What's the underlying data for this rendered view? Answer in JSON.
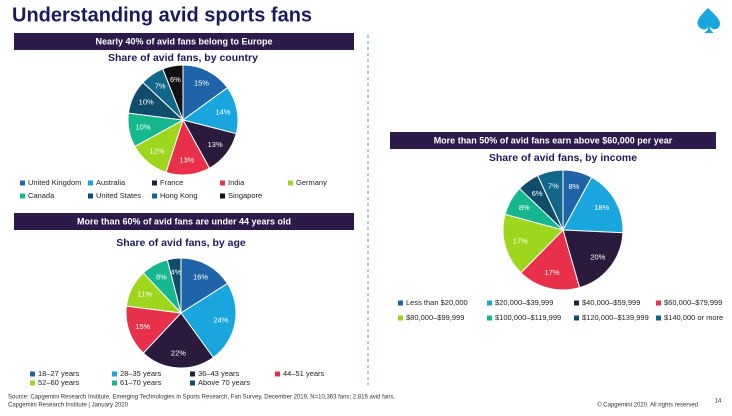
{
  "title": "Understanding avid sports fans",
  "chart_data": [
    {
      "type": "pie",
      "headline": "Nearly 40% of avid fans belong to Europe",
      "title": "Share of avid fans, by country",
      "categories": [
        "United Kingdom",
        "Australia",
        "France",
        "India",
        "Germany",
        "Canada",
        "United States",
        "Hong Kong",
        "Singapore"
      ],
      "values": [
        15,
        14,
        13,
        13,
        12,
        10,
        10,
        7,
        6
      ],
      "value_labels": [
        "15%",
        "14%",
        "13%",
        "13%",
        "12%",
        "10%",
        "10%",
        "7%",
        "6%"
      ],
      "colors": [
        "#1f64a8",
        "#19a6de",
        "#2a1b3d",
        "#e8304b",
        "#9ed61e",
        "#15b78e",
        "#0f4d6b",
        "#11678a",
        "#111111"
      ]
    },
    {
      "type": "pie",
      "headline": "More than 60% of avid fans are under 44 years old",
      "title": "Share of avid fans, by age",
      "categories": [
        "18–27 years",
        "28–35 years",
        "36–43 years",
        "44–51 years",
        "52–60 years",
        "61–70 years",
        "Above 70 years"
      ],
      "values": [
        16,
        24,
        22,
        15,
        11,
        8,
        4
      ],
      "value_labels": [
        "16%",
        "24%",
        "22%",
        "15%",
        "11%",
        "8%",
        "4%"
      ],
      "colors": [
        "#1f64a8",
        "#19a6de",
        "#2a1b3d",
        "#e8304b",
        "#9ed61e",
        "#15b78e",
        "#0f4d6b"
      ]
    },
    {
      "type": "pie",
      "headline": "More than 50% of avid fans earn above $60,000 per year",
      "title": "Share of avid fans, by income",
      "categories": [
        "Less than $20,000",
        "$20,000–$39,999",
        "$40,000–$59,999",
        "$60,000–$79,999",
        "$80,000–$99,999",
        "$100,000–$119,999",
        "$120,000–$139,999",
        "$140,000 or more"
      ],
      "values": [
        8,
        18,
        20,
        17,
        17,
        8,
        6,
        7
      ],
      "value_labels": [
        "8%",
        "18%",
        "20%",
        "17%",
        "17%",
        "8%",
        "6%",
        "7%"
      ],
      "colors": [
        "#1f64a8",
        "#19a6de",
        "#2a1b3d",
        "#e8304b",
        "#9ed61e",
        "#15b78e",
        "#0f4d6b",
        "#11678a"
      ]
    }
  ],
  "source": "Source: Capgemini Research Institute, Emerging Technologies in Sports Research, Fan Survey, December 2019, N=10,363 fans; 2,816 avid fans.",
  "footer": "Capgemini Research Institute | January 2020",
  "copyright": "© Capgemini 2020. All rights reserved",
  "page_number": "14"
}
